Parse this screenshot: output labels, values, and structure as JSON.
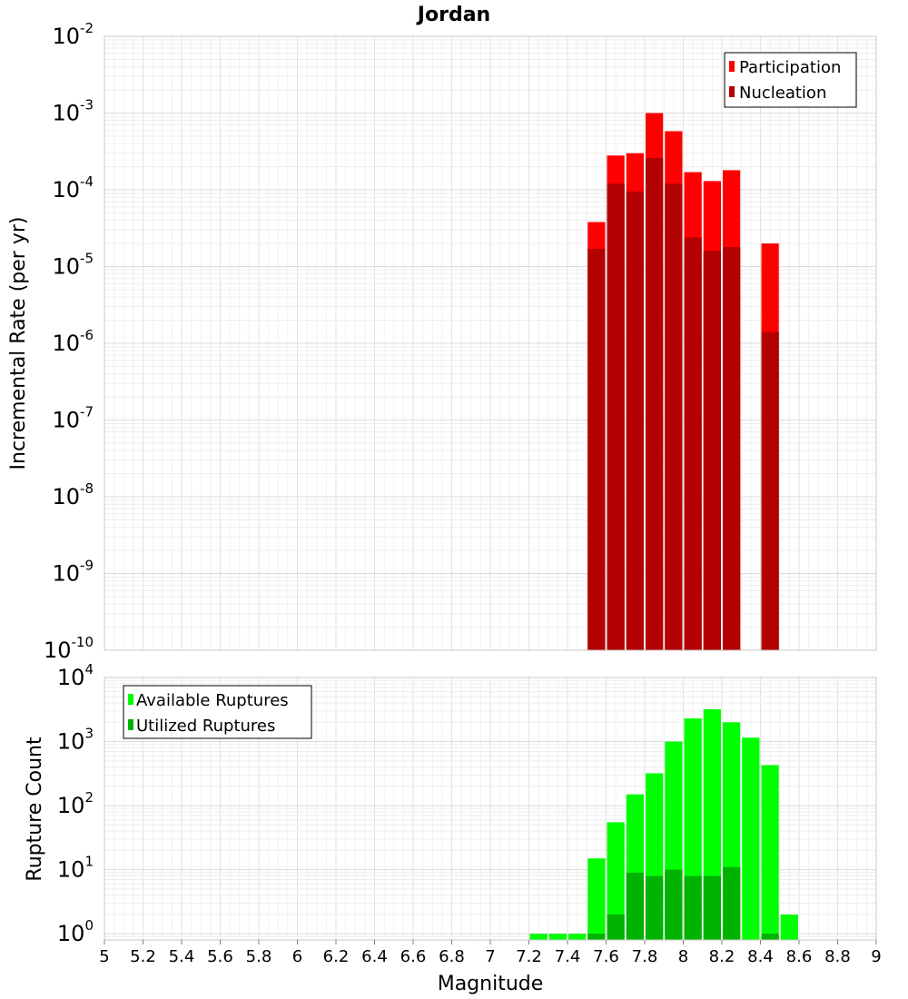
{
  "chart_data": [
    {
      "type": "bar",
      "title": "Jordan",
      "xlabel": "Magnitude",
      "ylabel": "Incremental Rate (per yr)",
      "y_scale": "log",
      "ylim": [
        1e-10,
        0.01
      ],
      "xlim": [
        5,
        9
      ],
      "grid": true,
      "legend_position": "top-right",
      "y_ticks": [
        {
          "base": "10",
          "exp": "-10",
          "value": 1e-10
        },
        {
          "base": "10",
          "exp": "-9",
          "value": 1e-09
        },
        {
          "base": "10",
          "exp": "-8",
          "value": 1e-08
        },
        {
          "base": "10",
          "exp": "-7",
          "value": 1e-07
        },
        {
          "base": "10",
          "exp": "-6",
          "value": 1e-06
        },
        {
          "base": "10",
          "exp": "-5",
          "value": 1e-05
        },
        {
          "base": "10",
          "exp": "-4",
          "value": 0.0001
        },
        {
          "base": "10",
          "exp": "-3",
          "value": 0.001
        },
        {
          "base": "10",
          "exp": "-2",
          "value": 0.01
        }
      ],
      "x": [
        7.55,
        7.65,
        7.75,
        7.85,
        7.95,
        8.05,
        8.15,
        8.25,
        8.45
      ],
      "series": [
        {
          "name": "Participation",
          "color": "#ff0000",
          "values": [
            3.8e-05,
            0.00028,
            0.0003,
            0.001,
            0.00058,
            0.00017,
            0.00013,
            0.00018,
            2e-05
          ]
        },
        {
          "name": "Nucleation",
          "color": "#b30000",
          "values": [
            1.7e-05,
            0.00012,
            9.5e-05,
            0.00026,
            0.00012,
            2.4e-05,
            1.6e-05,
            1.8e-05,
            1.4e-06
          ]
        }
      ]
    },
    {
      "type": "bar",
      "title": "",
      "xlabel": "Magnitude",
      "ylabel": "Rupture Count",
      "y_scale": "log",
      "ylim": [
        0.8,
        10000
      ],
      "xlim": [
        5,
        9
      ],
      "grid": true,
      "legend_position": "top-left",
      "x_ticks": [
        "5",
        "5.2",
        "5.4",
        "5.6",
        "5.8",
        "6",
        "6.2",
        "6.4",
        "6.6",
        "6.8",
        "7",
        "7.2",
        "7.4",
        "7.6",
        "7.8",
        "8",
        "8.2",
        "8.4",
        "8.6",
        "8.8",
        "9"
      ],
      "y_ticks": [
        {
          "base": "10",
          "exp": "0",
          "value": 1
        },
        {
          "base": "10",
          "exp": "1",
          "value": 10
        },
        {
          "base": "10",
          "exp": "2",
          "value": 100
        },
        {
          "base": "10",
          "exp": "3",
          "value": 1000
        },
        {
          "base": "10",
          "exp": "4",
          "value": 10000
        }
      ],
      "x": [
        7.25,
        7.35,
        7.45,
        7.55,
        7.65,
        7.75,
        7.85,
        7.95,
        8.05,
        8.15,
        8.25,
        8.35,
        8.45,
        8.55
      ],
      "series": [
        {
          "name": "Available Ruptures",
          "color": "#00ff00",
          "values": [
            1,
            1,
            1,
            15,
            55,
            150,
            320,
            1000,
            2300,
            3200,
            2000,
            1150,
            430,
            2
          ]
        },
        {
          "name": "Utilized Ruptures",
          "color": "#00b300",
          "values": [
            0,
            0,
            0,
            1,
            2,
            9,
            8,
            10,
            8,
            8,
            11,
            0,
            1,
            0
          ]
        }
      ]
    }
  ]
}
